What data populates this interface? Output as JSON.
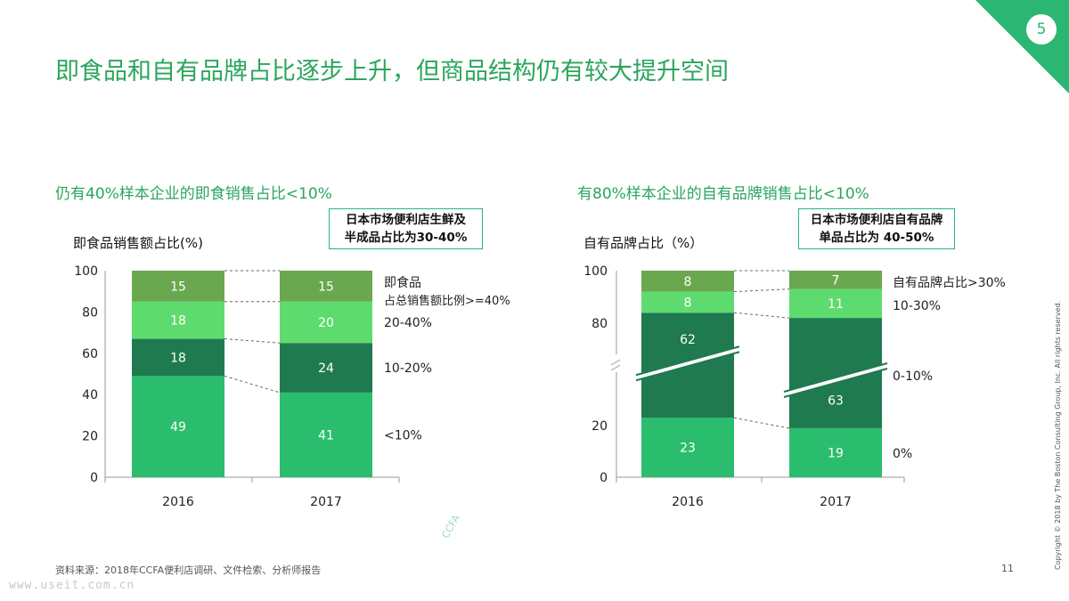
{
  "page": {
    "number": "5",
    "title": "即食品和自有品牌占比逐步上升，但商品结构仍有较大提升空间",
    "footer_source": "资料来源：2018年CCFA便利店调研、文件检索、分析师报告",
    "footer_page": "11",
    "copyright": "Copyright © 2018 by The Boston Consulting Group, Inc. All rights reserved.",
    "watermark": "CCFA",
    "url": "www.useit.com.cn",
    "colors": {
      "accent": "#2aa65c",
      "dark": "#1f7a4f",
      "mid": "#2bbd6e",
      "light": "#5edb6f",
      "top": "#6aa84f"
    }
  },
  "left": {
    "subtitle": "仍有40%样本企业的即食销售占比<10%",
    "note_line1": "日本市场便利店生鲜及",
    "note_line2": "半成品占比为30-40%",
    "ylabel": "即食品销售额占比(%)"
  },
  "right": {
    "subtitle": "有80%样本企业的自有品牌销售占比<10%",
    "note_line1": "日本市场便利店自有品牌",
    "note_line2": "单品占比为 40-50%",
    "ylabel": "自有品牌占比（%）"
  },
  "chart_data": [
    {
      "type": "bar",
      "stacked": true,
      "categories": [
        "2016",
        "2017"
      ],
      "ylim": [
        0,
        100
      ],
      "yticks": [
        0,
        20,
        40,
        60,
        80,
        100
      ],
      "series": [
        {
          "name": "<10%",
          "color": "#2bbd6e",
          "values": [
            49,
            41
          ]
        },
        {
          "name": "10-20%",
          "color": "#1f7a4f",
          "values": [
            18,
            24
          ]
        },
        {
          "name": "20-40%",
          "color": "#5edb6f",
          "values": [
            18,
            20
          ]
        },
        {
          "name": "即食品占总销售额比例>=40%",
          "color": "#6aa84f",
          "values": [
            15,
            15
          ]
        }
      ],
      "legend_lines": [
        "即食品",
        "占总销售额比例>=40%"
      ]
    },
    {
      "type": "bar",
      "stacked": true,
      "axis_break": true,
      "categories": [
        "2016",
        "2017"
      ],
      "ylim": [
        0,
        100
      ],
      "yticks": [
        0,
        20,
        80,
        100
      ],
      "series": [
        {
          "name": "0%",
          "color": "#2bbd6e",
          "values": [
            23,
            19
          ]
        },
        {
          "name": "0-10%",
          "color": "#1f7a4f",
          "values": [
            62,
            63
          ]
        },
        {
          "name": "10-30%",
          "color": "#5edb6f",
          "values": [
            8,
            11
          ]
        },
        {
          "name": "自有品牌占比>30%",
          "color": "#6aa84f",
          "values": [
            8,
            7
          ]
        }
      ]
    }
  ]
}
